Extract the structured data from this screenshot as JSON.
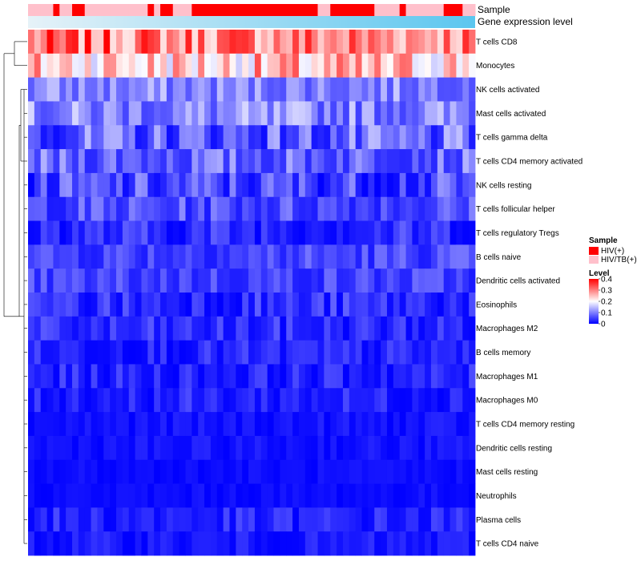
{
  "chart_data": {
    "type": "heatmap",
    "title": "",
    "annotation_tracks": [
      "Sample",
      "Gene expression level"
    ],
    "sample_groups": {
      "labels": [
        "HIV(+)",
        "HIV/TB(+)"
      ],
      "colors": [
        "#ff0000",
        "#ffc0cb"
      ],
      "sequence": [
        1,
        1,
        1,
        1,
        0,
        1,
        1,
        0,
        0,
        1,
        1,
        1,
        1,
        1,
        1,
        1,
        1,
        1,
        1,
        0,
        1,
        0,
        0,
        1,
        1,
        1,
        0,
        0,
        0,
        0,
        0,
        0,
        0,
        0,
        0,
        0,
        0,
        0,
        0,
        0,
        0,
        0,
        0,
        0,
        0,
        0,
        1,
        1,
        0,
        0,
        0,
        0,
        0,
        0,
        0,
        1,
        1,
        1,
        1,
        0,
        1,
        1,
        1,
        1,
        1,
        1,
        0,
        0,
        0,
        1,
        1
      ],
      "note": "0 = HIV(+), 1 = HIV/TB(+), left to right across 71 samples"
    },
    "gene_expression_gradient": [
      "#e6f2f8",
      "#5bc6ef"
    ],
    "rows": [
      "T cells CD8",
      "Monocytes",
      "NK cells activated",
      "Mast cells activated",
      "T cells gamma delta",
      "T cells CD4 memory activated",
      "NK cells resting",
      "T cells follicular helper",
      "T cells regulatory  Tregs",
      "B cells naive",
      "Dendritic cells activated",
      "Eosinophils",
      "Macrophages M2",
      "B cells memory",
      "Macrophages M1",
      "Macrophages M0",
      "T cells CD4 memory resting",
      "Dendritic cells resting",
      "Mast cells resting",
      "Neutrophils",
      "Plasma cells",
      "T cells CD4 naive"
    ],
    "n_columns": 71,
    "row_level_ranges": [
      [
        0.22,
        0.4
      ],
      [
        0.16,
        0.34
      ],
      [
        0.06,
        0.16
      ],
      [
        0.05,
        0.17
      ],
      [
        0.01,
        0.15
      ],
      [
        0.03,
        0.14
      ],
      [
        0.0,
        0.12
      ],
      [
        0.02,
        0.11
      ],
      [
        0.0,
        0.08
      ],
      [
        0.02,
        0.1
      ],
      [
        0.02,
        0.09
      ],
      [
        0.0,
        0.08
      ],
      [
        0.0,
        0.07
      ],
      [
        0.0,
        0.06
      ],
      [
        0.0,
        0.06
      ],
      [
        0.0,
        0.06
      ],
      [
        0.0,
        0.03
      ],
      [
        0.0,
        0.03
      ],
      [
        0.0,
        0.02
      ],
      [
        0.0,
        0.02
      ],
      [
        0.0,
        0.06
      ],
      [
        0.0,
        0.04
      ]
    ],
    "legend": {
      "sample_title": "Sample",
      "level_title": "Level",
      "level_ticks": [
        "0.4",
        "0.3",
        "0.2",
        "0.1",
        "0"
      ],
      "level_range": [
        0,
        0.4
      ],
      "level_colors": [
        "#0000ff",
        "#ffffff",
        "#ff0000"
      ],
      "placement": "right"
    }
  }
}
